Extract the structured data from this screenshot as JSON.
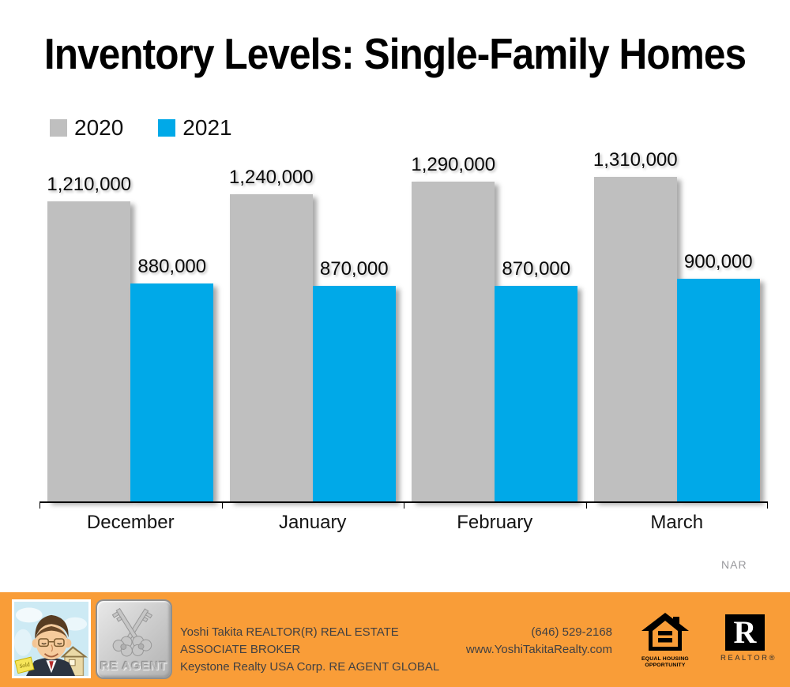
{
  "title": "Inventory Levels: Single-Family Homes",
  "source": "NAR",
  "legend": [
    {
      "label": "2020",
      "color": "#BFBFBF"
    },
    {
      "label": "2021",
      "color": "#00A9E8"
    }
  ],
  "chart_data": {
    "type": "bar",
    "categories": [
      "December",
      "January",
      "February",
      "March"
    ],
    "series": [
      {
        "name": "2020",
        "color": "#BFBFBF",
        "values": [
          1210000,
          1240000,
          1290000,
          1310000
        ],
        "labels": [
          "1,210,000",
          "1,240,000",
          "1,290,000",
          "1,310,000"
        ]
      },
      {
        "name": "2021",
        "color": "#00A9E8",
        "values": [
          880000,
          870000,
          870000,
          900000
        ],
        "labels": [
          "880,000",
          "870,000",
          "870,000",
          "900,000"
        ]
      }
    ],
    "ylim": [
      0,
      1310000
    ],
    "grid": false,
    "legend_position": "top-left",
    "y_axis_labels_shown": false
  },
  "footer": {
    "background": "#F99D38",
    "agent_line1": "Yoshi Takita REALTOR(R) REAL ESTATE ASSOCIATE BROKER",
    "agent_line2": "Keystone Realty USA Corp.  RE AGENT GLOBAL",
    "phone": "(646) 529-2168",
    "website": "www.YoshiTakitaRealty.com",
    "badge_label": "RE AGENT",
    "sold_sign": "Sold",
    "eho_line1": "EQUAL HOUSING",
    "eho_line2": "OPPORTUNITY",
    "realtor_r": "R",
    "realtor_text": "REALTOR®"
  }
}
